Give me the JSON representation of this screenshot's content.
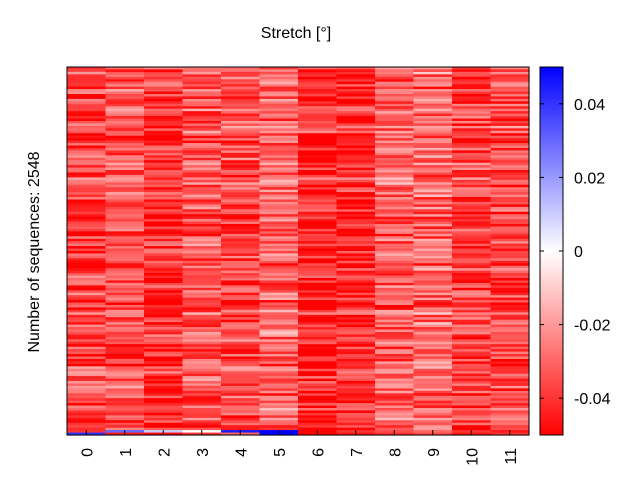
{
  "chart_data": {
    "type": "heatmap",
    "title": "Stretch [°]",
    "xlabel": "",
    "ylabel": "Number of sequences: 2548",
    "x_categories": [
      "0",
      "1",
      "2",
      "3",
      "4",
      "5",
      "6",
      "7",
      "8",
      "9",
      "10",
      "11"
    ],
    "n_rows": 2548,
    "colorbar": {
      "range": [
        -0.05,
        0.05
      ],
      "ticks": [
        0.04,
        0.02,
        0,
        -0.02,
        -0.04
      ],
      "tick_labels": [
        "0.04",
        "0.02",
        "0",
        "-0.02",
        "-0.04"
      ],
      "colors": {
        "low": "#ff0000",
        "mid": "#ffffff",
        "high": "#0000ff"
      }
    },
    "column_mean_values": [
      -0.036,
      -0.035,
      -0.04,
      -0.034,
      -0.035,
      -0.03,
      -0.043,
      -0.042,
      -0.031,
      -0.029,
      -0.037,
      -0.035
    ],
    "bottom_rows_values": [
      [
        0.04,
        -0.045,
        -0.048,
        -0.04,
        -0.03,
        0.05,
        -0.05,
        -0.045,
        -0.04,
        -0.035,
        -0.045,
        -0.04
      ],
      [
        -0.04,
        0.03,
        0.01,
        0.0,
        0.045,
        0.05,
        -0.05,
        -0.04,
        -0.035,
        -0.03,
        -0.04,
        -0.045
      ]
    ]
  }
}
